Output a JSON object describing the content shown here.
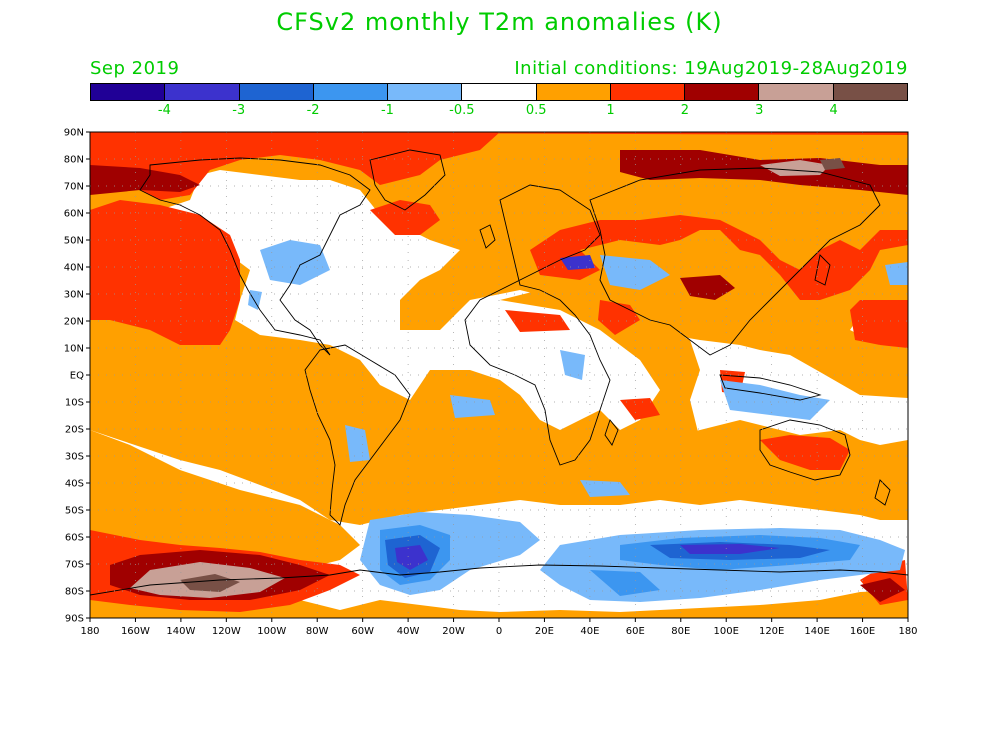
{
  "header": {
    "title": "CFSv2 monthly T2m anomalies (K)",
    "month": "Sep 2019",
    "initial_conditions": "Initial conditions: 19Aug2019-28Aug2019",
    "text_color": "#00cc00"
  },
  "legend": {
    "colors": [
      "#200096",
      "#3c32cd",
      "#1e64d2",
      "#3c96f0",
      "#78b9fa",
      "#ffffff",
      "#ffa000",
      "#ff3200",
      "#a00000",
      "#c8a096",
      "#785046"
    ],
    "labels": [
      "-4",
      "-3",
      "-2",
      "-1",
      "-0.5",
      "0.5",
      "1",
      "2",
      "3",
      "4"
    ]
  },
  "map": {
    "lat_labels": [
      "90N",
      "80N",
      "70N",
      "60N",
      "50N",
      "40N",
      "30N",
      "20N",
      "10N",
      "EQ",
      "10S",
      "20S",
      "30S",
      "40S",
      "50S",
      "60S",
      "70S",
      "80S",
      "90S"
    ],
    "lon_labels": [
      "180",
      "160W",
      "140W",
      "120W",
      "100W",
      "80W",
      "60W",
      "40W",
      "20W",
      "0",
      "20E",
      "40E",
      "60E",
      "80E",
      "100E",
      "120E",
      "140E",
      "160E",
      "180"
    ]
  }
}
